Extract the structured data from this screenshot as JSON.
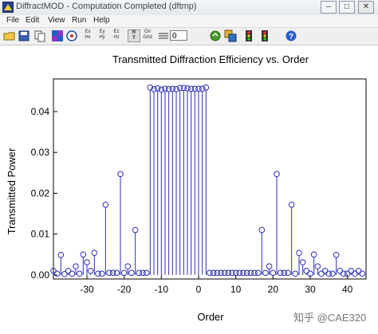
{
  "window": {
    "title": "DiffractMOD - Computation Completed (dftmp)",
    "minimize": "–",
    "maximize": "□",
    "close": "✕"
  },
  "menu": {
    "items": [
      "File",
      "Edit",
      "View",
      "Run",
      "Help"
    ]
  },
  "toolbar": {
    "ex_label": "Ex",
    "hx_label": "Hx",
    "ey_label": "Ey",
    "hy_label": "Hy",
    "ez_label": "Ez",
    "hz_label": "Hz",
    "r_label": "R",
    "t_label": "T",
    "on_label": "On",
    "grid_label": "Grid",
    "field_value": "0",
    "icons": [
      "open-icon",
      "save-icon",
      "copy-icon",
      "pattern-icon",
      "target-icon",
      "field-ex-hx-icon",
      "field-ey-hy-icon",
      "field-ez-hz-icon",
      "reflect-transmit-icon",
      "grid-icon",
      "step-icon",
      "refresh-icon",
      "multi-window-icon",
      "traffic-light-icon",
      "traffic-light-2-icon",
      "help-icon"
    ]
  },
  "watermark": "知乎 @CAE320",
  "colors": {
    "stem": "#2d2db5",
    "axis": "#000000"
  },
  "chart_data": {
    "type": "stem",
    "title": "Transmitted Diffraction Efficiency vs. Order",
    "xlabel": "Order",
    "ylabel": "Transmitted Power",
    "xlim": [
      -39,
      45
    ],
    "ylim": [
      -0.001,
      0.048
    ],
    "xticks": [
      -30,
      -20,
      -10,
      0,
      10,
      20,
      30,
      40
    ],
    "yticks": [
      0.0,
      0.01,
      0.02,
      0.03,
      0.04
    ],
    "ytick_labels": [
      "0.00",
      "0.01",
      "0.02",
      "0.03",
      "0.04"
    ],
    "points": [
      {
        "x": -39,
        "y": 0.001
      },
      {
        "x": -38,
        "y": 0.0003
      },
      {
        "x": -37,
        "y": 0.0049
      },
      {
        "x": -36,
        "y": 0.0002
      },
      {
        "x": -35,
        "y": 0.001
      },
      {
        "x": -34,
        "y": 0.0003
      },
      {
        "x": -33,
        "y": 0.0021
      },
      {
        "x": -32,
        "y": 0.0003
      },
      {
        "x": -31,
        "y": 0.005
      },
      {
        "x": -30,
        "y": 0.0031
      },
      {
        "x": -29,
        "y": 0.001
      },
      {
        "x": -28,
        "y": 0.0054
      },
      {
        "x": -27,
        "y": 0.0003
      },
      {
        "x": -26,
        "y": 0.0003
      },
      {
        "x": -25,
        "y": 0.0172
      },
      {
        "x": -24,
        "y": 0.0005
      },
      {
        "x": -23,
        "y": 0.0005
      },
      {
        "x": -22,
        "y": 0.0005
      },
      {
        "x": -21,
        "y": 0.0247
      },
      {
        "x": -20,
        "y": 0.0005
      },
      {
        "x": -19,
        "y": 0.0021
      },
      {
        "x": -18,
        "y": 0.0005
      },
      {
        "x": -17,
        "y": 0.011
      },
      {
        "x": -16,
        "y": 0.0005
      },
      {
        "x": -15,
        "y": 0.0005
      },
      {
        "x": -14,
        "y": 0.0005
      },
      {
        "x": -13,
        "y": 0.0459
      },
      {
        "x": -12,
        "y": 0.0455
      },
      {
        "x": -11,
        "y": 0.0457
      },
      {
        "x": -10,
        "y": 0.0454
      },
      {
        "x": -9,
        "y": 0.0456
      },
      {
        "x": -8,
        "y": 0.0455
      },
      {
        "x": -7,
        "y": 0.0456
      },
      {
        "x": -6,
        "y": 0.0455
      },
      {
        "x": -5,
        "y": 0.0458
      },
      {
        "x": -4,
        "y": 0.0458
      },
      {
        "x": -3,
        "y": 0.0457
      },
      {
        "x": -2,
        "y": 0.0456
      },
      {
        "x": -1,
        "y": 0.0456
      },
      {
        "x": 0,
        "y": 0.0456
      },
      {
        "x": 1,
        "y": 0.0456
      },
      {
        "x": 2,
        "y": 0.0459
      },
      {
        "x": 3,
        "y": 0.0005
      },
      {
        "x": 4,
        "y": 0.0005
      },
      {
        "x": 5,
        "y": 0.0005
      },
      {
        "x": 6,
        "y": 0.0005
      },
      {
        "x": 7,
        "y": 0.0005
      },
      {
        "x": 8,
        "y": 0.0005
      },
      {
        "x": 9,
        "y": 0.0005
      },
      {
        "x": 10,
        "y": 0.0005
      },
      {
        "x": 11,
        "y": 0.0005
      },
      {
        "x": 12,
        "y": 0.0005
      },
      {
        "x": 13,
        "y": 0.0005
      },
      {
        "x": 14,
        "y": 0.0005
      },
      {
        "x": 15,
        "y": 0.0005
      },
      {
        "x": 16,
        "y": 0.0005
      },
      {
        "x": 17,
        "y": 0.011
      },
      {
        "x": 18,
        "y": 0.0005
      },
      {
        "x": 19,
        "y": 0.0021
      },
      {
        "x": 20,
        "y": 0.0005
      },
      {
        "x": 21,
        "y": 0.0247
      },
      {
        "x": 22,
        "y": 0.0005
      },
      {
        "x": 23,
        "y": 0.0005
      },
      {
        "x": 24,
        "y": 0.0005
      },
      {
        "x": 25,
        "y": 0.0172
      },
      {
        "x": 26,
        "y": 0.0003
      },
      {
        "x": 27,
        "y": 0.0054
      },
      {
        "x": 28,
        "y": 0.0031
      },
      {
        "x": 29,
        "y": 0.001
      },
      {
        "x": 30,
        "y": 0.0003
      },
      {
        "x": 31,
        "y": 0.005
      },
      {
        "x": 32,
        "y": 0.0021
      },
      {
        "x": 33,
        "y": 0.0003
      },
      {
        "x": 34,
        "y": 0.001
      },
      {
        "x": 35,
        "y": 0.0003
      },
      {
        "x": 36,
        "y": 0.0003
      },
      {
        "x": 37,
        "y": 0.0049
      },
      {
        "x": 38,
        "y": 0.001
      },
      {
        "x": 39,
        "y": 0.0003
      },
      {
        "x": 40,
        "y": 0.0003
      },
      {
        "x": 41,
        "y": 0.001
      },
      {
        "x": 42,
        "y": 0.0003
      },
      {
        "x": 43,
        "y": 0.001
      },
      {
        "x": 44,
        "y": 0.0003
      }
    ]
  }
}
